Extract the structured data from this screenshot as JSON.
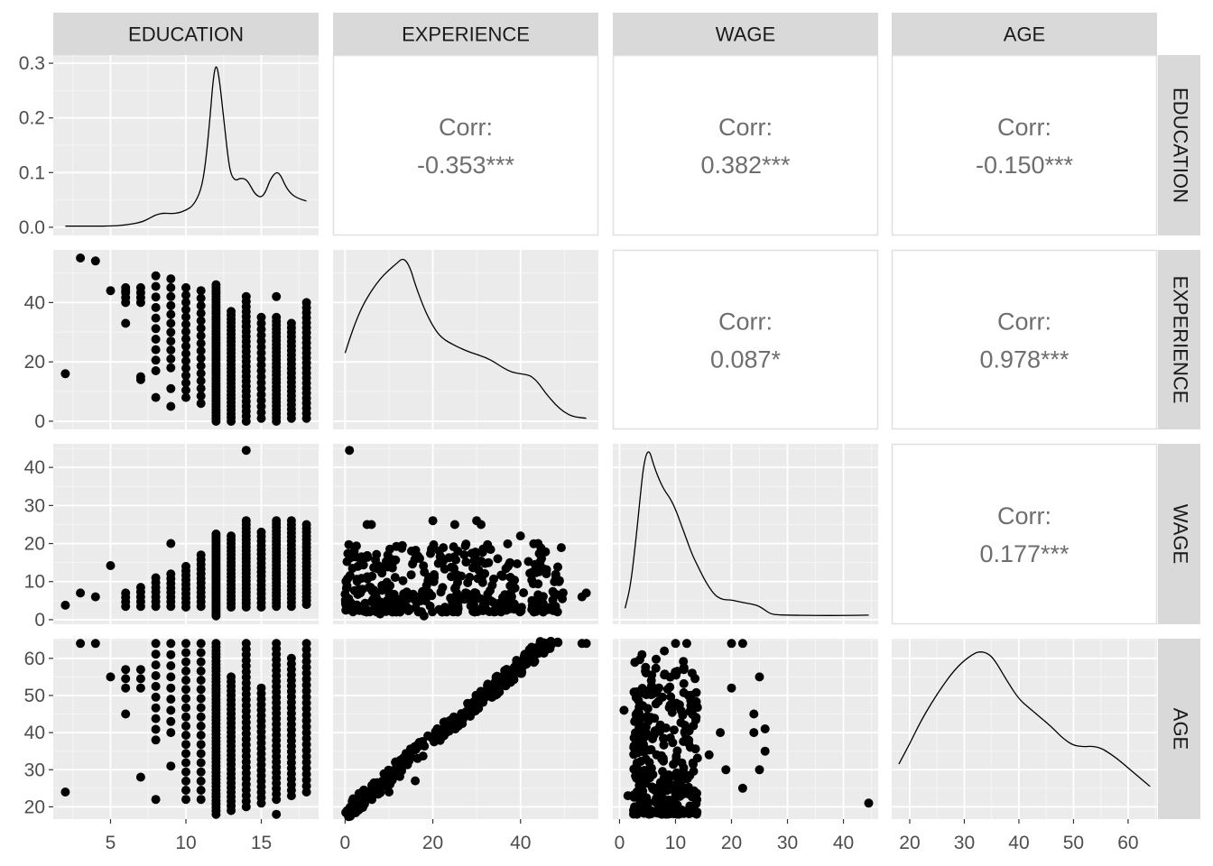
{
  "chart_data": {
    "type": "pairs_matrix",
    "title": "",
    "variables": [
      "EDUCATION",
      "EXPERIENCE",
      "WAGE",
      "AGE"
    ],
    "column_strips": [
      "EDUCATION",
      "EXPERIENCE",
      "WAGE",
      "AGE"
    ],
    "row_strips": [
      "EDUCATION",
      "EXPERIENCE",
      "WAGE",
      "AGE"
    ],
    "corr_label": "Corr:",
    "correlations": [
      {
        "row": 0,
        "col": 1,
        "value": "-0.353***"
      },
      {
        "row": 0,
        "col": 2,
        "value": "0.382***"
      },
      {
        "row": 0,
        "col": 3,
        "value": "-0.150***"
      },
      {
        "row": 1,
        "col": 2,
        "value": "0.087*"
      },
      {
        "row": 1,
        "col": 3,
        "value": "0.978***"
      },
      {
        "row": 2,
        "col": 3,
        "value": "0.177***"
      }
    ],
    "x_ranges": {
      "EDUCATION": [
        1.2,
        18.8
      ],
      "EXPERIENCE": [
        -2.75,
        57.75
      ],
      "WAGE": [
        -1.2,
        46.2
      ],
      "AGE": [
        16.7,
        65.3
      ]
    },
    "y_ranges": {
      "EDUCATION_density": [
        -0.015,
        0.315
      ],
      "EXPERIENCE": [
        -2.75,
        57.75
      ],
      "WAGE": [
        -1.2,
        46.2
      ],
      "AGE": [
        16.7,
        65.3
      ]
    },
    "x_ticks": {
      "EDUCATION": [
        5,
        10,
        15
      ],
      "EXPERIENCE": [
        0,
        20,
        40
      ],
      "WAGE": [
        0,
        10,
        20,
        30,
        40
      ],
      "AGE": [
        20,
        30,
        40,
        50,
        60
      ]
    },
    "y_ticks": {
      "EDUCATION": [
        "0.0",
        "0.1",
        "0.2",
        "0.3"
      ],
      "EXPERIENCE": [
        0,
        20,
        40
      ],
      "WAGE": [
        0,
        10,
        20,
        30,
        40
      ],
      "AGE": [
        20,
        30,
        40,
        50,
        60
      ]
    },
    "densities": {
      "EDUCATION": {
        "x": [
          2,
          3,
          4,
          5,
          6,
          7,
          7.5,
          8,
          8.5,
          9,
          9.5,
          10,
          10.5,
          11,
          11.3,
          11.6,
          11.8,
          12,
          12.2,
          12.5,
          12.8,
          13,
          13.3,
          13.6,
          14,
          14.3,
          14.6,
          15,
          15.3,
          15.6,
          16,
          16.3,
          16.6,
          17,
          17.5,
          18
        ],
        "y": [
          0.002,
          0.002,
          0.002,
          0.002,
          0.004,
          0.009,
          0.015,
          0.023,
          0.026,
          0.025,
          0.026,
          0.031,
          0.04,
          0.067,
          0.115,
          0.2,
          0.27,
          0.3,
          0.275,
          0.2,
          0.125,
          0.095,
          0.085,
          0.09,
          0.088,
          0.075,
          0.06,
          0.054,
          0.065,
          0.088,
          0.102,
          0.095,
          0.075,
          0.06,
          0.052,
          0.048
        ]
      },
      "EXPERIENCE": {
        "x": [
          0,
          2,
          4,
          6,
          8,
          10,
          12,
          13,
          14,
          15,
          16,
          18,
          20,
          22,
          25,
          28,
          30,
          32,
          34,
          36,
          38,
          40,
          42,
          43,
          44,
          45,
          46,
          48,
          50,
          52,
          55
        ],
        "y": [
          23,
          32,
          39,
          44,
          48,
          51,
          53.5,
          54.8,
          54,
          51,
          46,
          38,
          32,
          28,
          25.5,
          23.5,
          22.5,
          21.5,
          20,
          18,
          16.5,
          16,
          15.5,
          14.5,
          13,
          11,
          9,
          5.5,
          3,
          1.5,
          1
        ]
      },
      "WAGE": {
        "x": [
          1,
          2,
          3,
          4,
          4.5,
          5,
          5.5,
          6,
          7,
          8,
          9,
          10,
          11,
          12,
          13,
          14,
          15,
          16,
          17,
          18,
          19,
          20,
          22,
          24,
          25,
          26,
          27,
          28,
          30,
          35,
          40,
          44.5
        ],
        "y": [
          3,
          9,
          22,
          37,
          42,
          44.3,
          43.8,
          41,
          37,
          34,
          32,
          29,
          25,
          21,
          17,
          14,
          11,
          8.5,
          6.5,
          5.5,
          5.2,
          5.2,
          4.5,
          4,
          3.5,
          2.5,
          1.5,
          1.3,
          1.2,
          1.1,
          1.1,
          1.2
        ]
      },
      "AGE": {
        "x": [
          18,
          20,
          22,
          24,
          26,
          28,
          30,
          32,
          33,
          34,
          35,
          36,
          38,
          40,
          42,
          44,
          46,
          48,
          50,
          52,
          53,
          54,
          55,
          56,
          58,
          60,
          62,
          64
        ],
        "y": [
          31.5,
          37,
          43,
          48,
          52.5,
          56.5,
          59.5,
          61.5,
          61.8,
          61.5,
          60.5,
          58.5,
          53.5,
          49,
          46.5,
          44,
          41.5,
          38.5,
          36.5,
          36.2,
          36.3,
          36.2,
          35.8,
          35,
          33,
          30.5,
          28,
          25.5
        ]
      }
    },
    "scatter": {
      "EDUCATION_EXPERIENCE": {
        "points": [
          [
            2,
            16
          ],
          [
            3,
            55
          ],
          [
            4,
            54
          ],
          [
            5,
            44
          ],
          [
            6,
            44
          ],
          [
            6,
            33
          ],
          [
            7,
            15
          ],
          [
            7,
            14
          ],
          [
            8,
            8
          ],
          [
            9,
            11
          ],
          [
            9,
            5
          ],
          [
            14,
            32
          ],
          [
            16,
            42
          ]
        ],
        "stripes": [
          {
            "x": 6,
            "y_min": 40,
            "y_max": 45,
            "n": 4
          },
          {
            "x": 7,
            "y_min": 40,
            "y_max": 45,
            "n": 4
          },
          {
            "x": 8,
            "y_min": 17,
            "y_max": 49,
            "n": 10
          },
          {
            "x": 9,
            "y_min": 18,
            "y_max": 48,
            "n": 11
          },
          {
            "x": 10,
            "y_min": 8,
            "y_max": 45,
            "n": 16
          },
          {
            "x": 11,
            "y_min": 6,
            "y_max": 44,
            "n": 16
          },
          {
            "x": 12,
            "y_min": 0,
            "y_max": 46,
            "n": 48
          },
          {
            "x": 13,
            "y_min": 0,
            "y_max": 37,
            "n": 30
          },
          {
            "x": 14,
            "y_min": 0,
            "y_max": 42,
            "n": 26
          },
          {
            "x": 15,
            "y_min": 1,
            "y_max": 35,
            "n": 18
          },
          {
            "x": 16,
            "y_min": 0,
            "y_max": 35,
            "n": 28
          },
          {
            "x": 17,
            "y_min": 1,
            "y_max": 33,
            "n": 22
          },
          {
            "x": 18,
            "y_min": 1,
            "y_max": 40,
            "n": 24
          }
        ]
      },
      "EDUCATION_WAGE": {
        "points": [
          [
            2,
            3.8
          ],
          [
            3,
            7
          ],
          [
            4,
            6
          ],
          [
            5,
            14.2
          ],
          [
            9,
            20
          ],
          [
            14,
            44.5
          ]
        ],
        "stripes": [
          {
            "x": 6,
            "y_min": 3.5,
            "y_max": 7,
            "n": 4
          },
          {
            "x": 7,
            "y_min": 3.5,
            "y_max": 8.5,
            "n": 5
          },
          {
            "x": 8,
            "y_min": 3.5,
            "y_max": 11,
            "n": 7
          },
          {
            "x": 9,
            "y_min": 3.5,
            "y_max": 12,
            "n": 8
          },
          {
            "x": 10,
            "y_min": 3.3,
            "y_max": 14,
            "n": 10
          },
          {
            "x": 11,
            "y_min": 3.5,
            "y_max": 17,
            "n": 12
          },
          {
            "x": 12,
            "y_min": 1,
            "y_max": 22.5,
            "n": 34
          },
          {
            "x": 13,
            "y_min": 3.3,
            "y_max": 22,
            "n": 20
          },
          {
            "x": 14,
            "y_min": 3.3,
            "y_max": 26,
            "n": 24
          },
          {
            "x": 15,
            "y_min": 3.3,
            "y_max": 23,
            "n": 18
          },
          {
            "x": 16,
            "y_min": 3.5,
            "y_max": 26,
            "n": 26
          },
          {
            "x": 17,
            "y_min": 3.5,
            "y_max": 26,
            "n": 22
          },
          {
            "x": 18,
            "y_min": 4,
            "y_max": 25,
            "n": 22
          }
        ]
      },
      "EDUCATION_AGE": {
        "points": [
          [
            2,
            24
          ],
          [
            3,
            64
          ],
          [
            4,
            64
          ],
          [
            5,
            55
          ],
          [
            6,
            45
          ],
          [
            7,
            28
          ],
          [
            8,
            22
          ],
          [
            9,
            31
          ],
          [
            16,
            18
          ]
        ],
        "stripes": [
          {
            "x": 6,
            "y_min": 52,
            "y_max": 57,
            "n": 3
          },
          {
            "x": 7,
            "y_min": 52,
            "y_max": 57,
            "n": 3
          },
          {
            "x": 8,
            "y_min": 38,
            "y_max": 64,
            "n": 10
          },
          {
            "x": 9,
            "y_min": 40,
            "y_max": 64,
            "n": 9
          },
          {
            "x": 10,
            "y_min": 22,
            "y_max": 64,
            "n": 18
          },
          {
            "x": 11,
            "y_min": 22,
            "y_max": 64,
            "n": 18
          },
          {
            "x": 12,
            "y_min": 18,
            "y_max": 64,
            "n": 50
          },
          {
            "x": 13,
            "y_min": 19,
            "y_max": 55,
            "n": 30
          },
          {
            "x": 14,
            "y_min": 20,
            "y_max": 64,
            "n": 30
          },
          {
            "x": 15,
            "y_min": 21,
            "y_max": 52,
            "n": 22
          },
          {
            "x": 16,
            "y_min": 22,
            "y_max": 64,
            "n": 30
          },
          {
            "x": 17,
            "y_min": 23,
            "y_max": 60,
            "n": 26
          },
          {
            "x": 18,
            "y_min": 24,
            "y_max": 64,
            "n": 26
          }
        ]
      },
      "EXPERIENCE_WAGE": {
        "points": [
          [
            1,
            44.5
          ],
          [
            1,
            3
          ],
          [
            5,
            25
          ],
          [
            6,
            25
          ],
          [
            8,
            1.5
          ],
          [
            18,
            1
          ],
          [
            20,
            26
          ],
          [
            25,
            25
          ],
          [
            30,
            26
          ],
          [
            31,
            25
          ],
          [
            40,
            22
          ],
          [
            44,
            20
          ],
          [
            48,
            3.5
          ],
          [
            54,
            6
          ],
          [
            55,
            7
          ]
        ],
        "cloud": {
          "x_range": [
            0,
            50
          ],
          "y_range": [
            2,
            20
          ],
          "n": 380
        }
      },
      "EXPERIENCE_AGE": {
        "line": {
          "slope": 1,
          "intercept": 18.2,
          "x_range": [
            0,
            55
          ],
          "spread": 2.5,
          "n": 320
        },
        "points": [
          [
            10,
            24
          ],
          [
            16,
            27
          ],
          [
            55,
            64
          ],
          [
            54,
            64
          ]
        ]
      },
      "WAGE_AGE": {
        "cloud": {
          "x_range": [
            2.5,
            14
          ],
          "y_range": [
            18,
            60
          ],
          "n": 320
        },
        "points": [
          [
            0.8,
            46
          ],
          [
            1.5,
            23
          ],
          [
            10,
            64
          ],
          [
            12,
            64
          ],
          [
            20,
            64
          ],
          [
            22,
            64
          ],
          [
            24,
            45
          ],
          [
            24,
            40
          ],
          [
            25,
            55
          ],
          [
            26,
            41
          ],
          [
            26,
            35
          ],
          [
            18,
            40
          ],
          [
            19,
            30
          ],
          [
            20,
            52
          ],
          [
            22,
            25
          ],
          [
            25,
            30
          ],
          [
            44.5,
            21
          ],
          [
            4,
            61
          ],
          [
            8,
            62
          ],
          [
            16,
            34
          ]
        ]
      }
    }
  }
}
